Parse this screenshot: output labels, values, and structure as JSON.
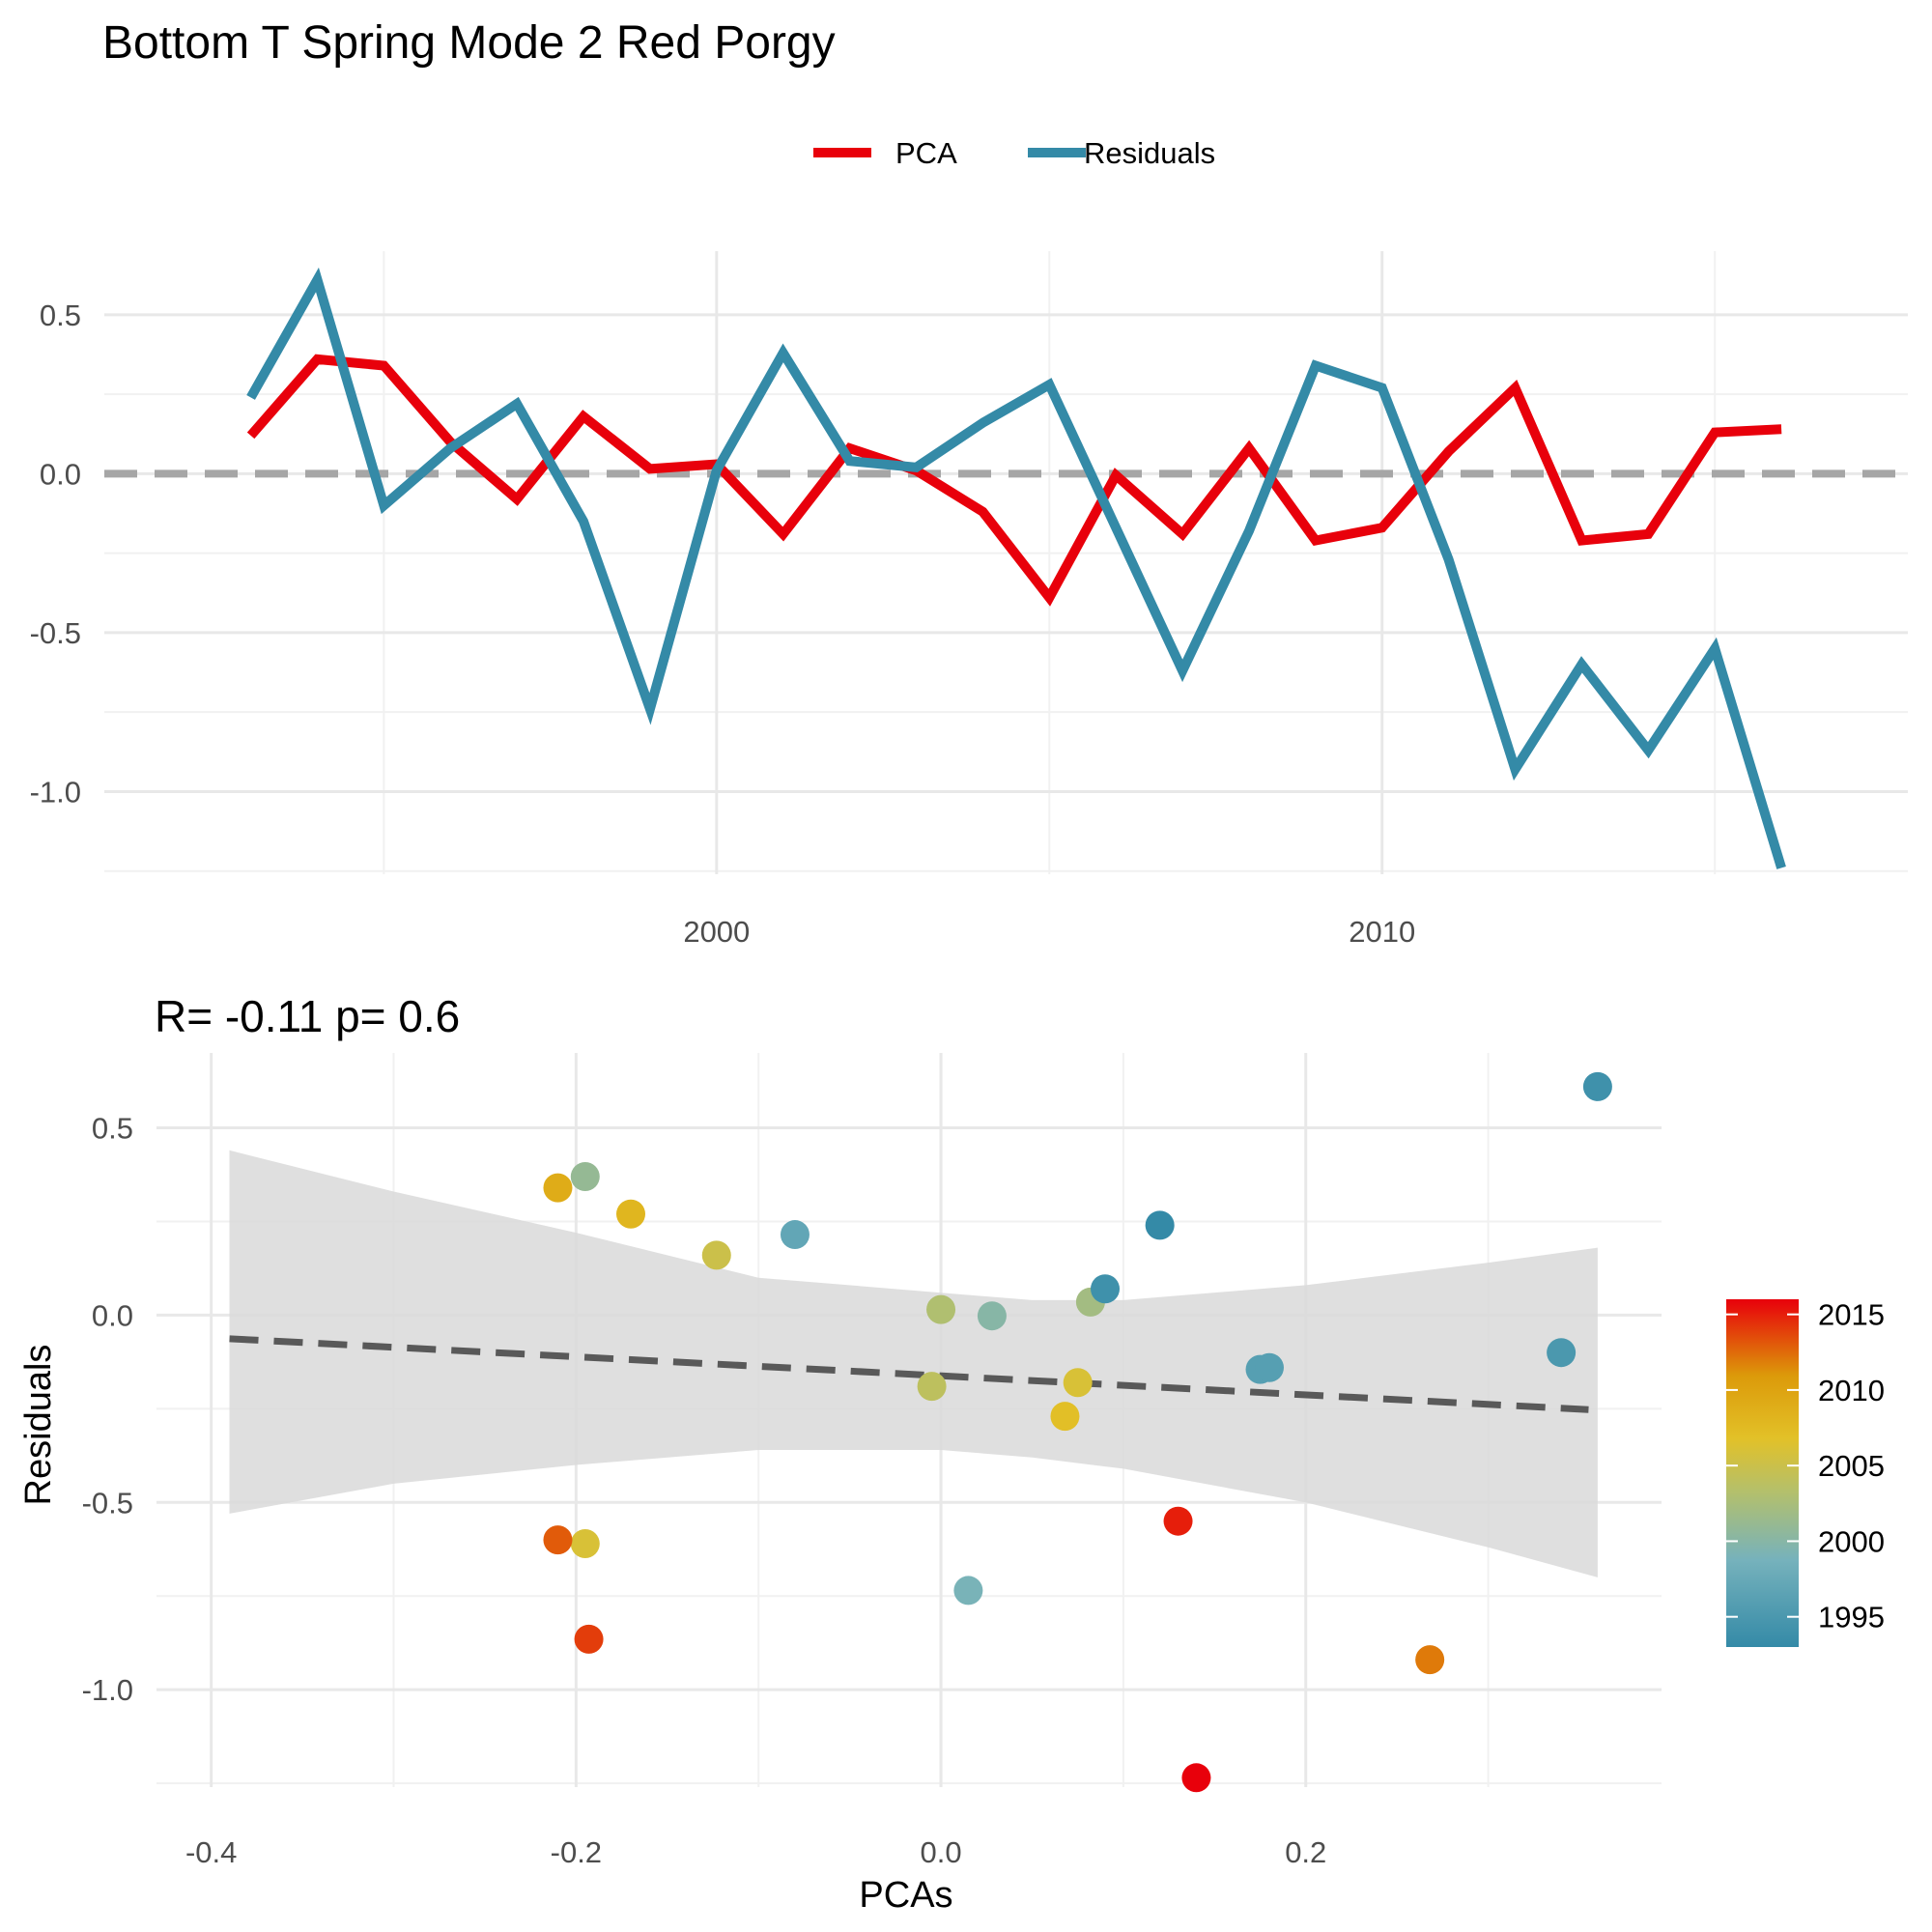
{
  "title": "Bottom T Spring Mode 2  Red Porgy",
  "chart_data": [
    {
      "type": "line",
      "legend": {
        "position": "top",
        "entries": [
          "PCA",
          "Residuals"
        ]
      },
      "colors": {
        "PCA": "#e8000b",
        "Residuals": "#348aa7",
        "zero_line": "#a6a6a6"
      },
      "x": [
        1993,
        1994,
        1995,
        1996,
        1997,
        1998,
        1999,
        2000,
        2001,
        2002,
        2003,
        2004,
        2005,
        2006,
        2007,
        2008,
        2009,
        2010,
        2011,
        2012,
        2013,
        2014,
        2015,
        2016
      ],
      "series": [
        {
          "name": "PCA",
          "values": [
            0.12,
            0.36,
            0.34,
            0.1,
            -0.08,
            0.18,
            0.015,
            0.03,
            -0.19,
            0.08,
            0.01,
            -0.12,
            -0.39,
            -0.005,
            -0.19,
            0.08,
            -0.21,
            -0.17,
            0.07,
            0.27,
            -0.21,
            -0.19,
            0.13,
            0.14
          ]
        },
        {
          "name": "Residuals",
          "values": [
            0.24,
            0.61,
            -0.1,
            0.08,
            0.22,
            -0.15,
            -0.74,
            0.01,
            0.38,
            0.04,
            0.02,
            0.16,
            0.28,
            -0.17,
            -0.62,
            -0.18,
            0.34,
            0.27,
            -0.27,
            -0.93,
            -0.6,
            -0.87,
            -0.55,
            -1.24
          ]
        }
      ],
      "reference_line": {
        "y": 0,
        "style": "dashed"
      },
      "xticks": [
        "2000",
        "2010"
      ],
      "yticks": [
        "-1.0",
        "-0.5",
        "0.0",
        "0.5"
      ],
      "xlim": [
        1990.8,
        2017.9
      ],
      "ylim": [
        -1.26,
        0.7
      ],
      "grid": true
    },
    {
      "type": "scatter",
      "subtitle": "R= -0.11  p= 0.6",
      "xlabel": "PCAs",
      "ylabel": "Residuals",
      "xticks": [
        "-0.4",
        "-0.2",
        "0.0",
        "0.2"
      ],
      "yticks": [
        "-1.0",
        "-0.5",
        "0.0",
        "0.5"
      ],
      "xlim": [
        -0.43,
        0.395
      ],
      "ylim": [
        -1.26,
        0.7
      ],
      "grid": true,
      "colorbar": {
        "position": "right",
        "ticks": [
          "2015",
          "2010",
          "2005",
          "2000",
          "1995"
        ],
        "range": [
          1993,
          2016
        ]
      },
      "points": [
        {
          "x": 0.12,
          "y": 0.24,
          "year": 1993
        },
        {
          "x": 0.36,
          "y": 0.61,
          "year": 1994
        },
        {
          "x": 0.34,
          "y": -0.1,
          "year": 1995
        },
        {
          "x": 0.175,
          "y": -0.145,
          "year": 1996
        },
        {
          "x": -0.08,
          "y": 0.215,
          "year": 1997
        },
        {
          "x": 0.18,
          "y": -0.14,
          "year": 1996
        },
        {
          "x": 0.015,
          "y": -0.735,
          "year": 1999
        },
        {
          "x": 0.028,
          "y": -0.002,
          "year": 2000
        },
        {
          "x": -0.195,
          "y": 0.37,
          "year": 2001
        },
        {
          "x": 0.082,
          "y": 0.035,
          "year": 2002
        },
        {
          "x": 0.09,
          "y": 0.07,
          "year": 1994
        },
        {
          "x": 0.0,
          "y": 0.015,
          "year": 2003
        },
        {
          "x": -0.005,
          "y": -0.19,
          "year": 2004
        },
        {
          "x": -0.123,
          "y": 0.16,
          "year": 2005
        },
        {
          "x": -0.195,
          "y": -0.61,
          "year": 2006
        },
        {
          "x": 0.075,
          "y": -0.18,
          "year": 2006
        },
        {
          "x": -0.21,
          "y": 0.34,
          "year": 2009
        },
        {
          "x": -0.17,
          "y": 0.27,
          "year": 2008
        },
        {
          "x": 0.068,
          "y": -0.27,
          "year": 2007
        },
        {
          "x": 0.268,
          "y": -0.92,
          "year": 2012
        },
        {
          "x": -0.21,
          "y": -0.6,
          "year": 2013
        },
        {
          "x": -0.193,
          "y": -0.865,
          "year": 2014
        },
        {
          "x": 0.13,
          "y": -0.55,
          "year": 2015
        },
        {
          "x": 0.14,
          "y": -1.235,
          "year": 2016
        }
      ],
      "fit": {
        "intercept": -0.162,
        "slope": -0.254,
        "x_range": [
          -0.39,
          0.355
        ]
      },
      "ci_band": {
        "x": [
          -0.39,
          -0.3,
          -0.2,
          -0.1,
          0.0,
          0.05,
          0.1,
          0.2,
          0.3,
          0.36
        ],
        "upper": [
          0.44,
          0.33,
          0.22,
          0.1,
          0.06,
          0.04,
          0.04,
          0.08,
          0.14,
          0.18
        ],
        "lower": [
          -0.53,
          -0.45,
          -0.4,
          -0.36,
          -0.36,
          -0.38,
          -0.41,
          -0.5,
          -0.62,
          -0.7
        ]
      }
    }
  ]
}
